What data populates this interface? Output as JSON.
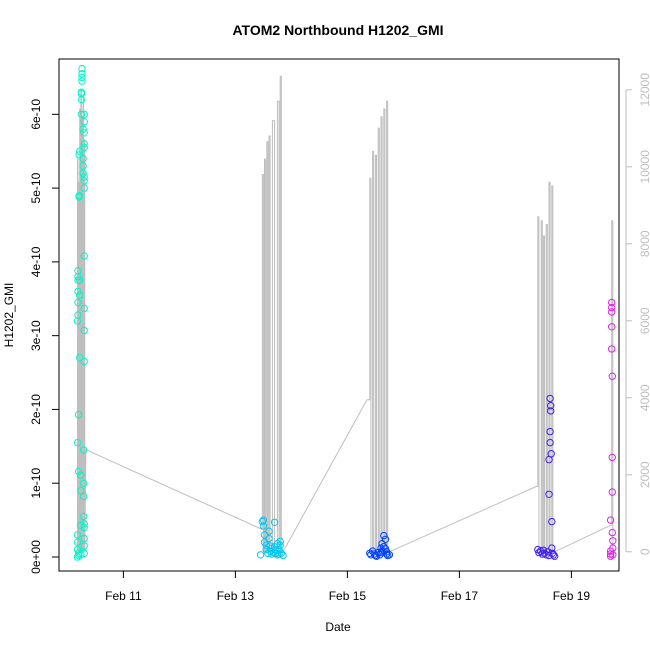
{
  "chart_data": {
    "type": "scatter",
    "title": "ATOM2 Northbound H1202_GMI",
    "xlabel": "Date",
    "ylabel": "H1202_GMI",
    "x_range_days": [
      9.85,
      19.85
    ],
    "x_ticks": [
      {
        "day": 11,
        "label": "Feb 11"
      },
      {
        "day": 13,
        "label": "Feb 13"
      },
      {
        "day": 15,
        "label": "Feb 15"
      },
      {
        "day": 17,
        "label": "Feb 17"
      },
      {
        "day": 19,
        "label": "Feb 19"
      }
    ],
    "ylim": [
      -1.9e-11,
      6.75e-10
    ],
    "y_ticks": [
      {
        "value": 0,
        "label": "0e+00"
      },
      {
        "value": 1e-10,
        "label": "1e-10"
      },
      {
        "value": 2e-10,
        "label": "2e-10"
      },
      {
        "value": 3e-10,
        "label": "3e-10"
      },
      {
        "value": 4e-10,
        "label": "4e-10"
      },
      {
        "value": 5e-10,
        "label": "5e-10"
      },
      {
        "value": 6e-10,
        "label": "6e-10"
      }
    ],
    "y2lim": [
      -500,
      12800
    ],
    "y2_ticks": [
      {
        "value": 0,
        "label": "0"
      },
      {
        "value": 2000,
        "label": "2000"
      },
      {
        "value": 4000,
        "label": "4000"
      },
      {
        "value": 6000,
        "label": "6000"
      },
      {
        "value": 8000,
        "label": "8000"
      },
      {
        "value": 10000,
        "label": "10000"
      },
      {
        "value": 12000,
        "label": "12000"
      }
    ],
    "secondary_line_color": "#bebebe",
    "series": [
      {
        "color": "#00f5c8",
        "x": [
          10.18,
          10.18,
          10.18,
          10.18,
          10.18,
          10.18,
          10.19,
          10.19,
          10.19,
          10.19,
          10.19,
          10.19,
          10.2,
          10.2,
          10.2,
          10.2,
          10.21,
          10.21,
          10.21,
          10.22,
          10.22,
          10.22,
          10.22,
          10.24,
          10.24,
          10.24,
          10.24,
          10.25,
          10.25,
          10.25,
          10.25,
          10.26,
          10.26,
          10.26,
          10.26,
          10.28,
          10.28,
          10.28,
          10.28,
          10.29,
          10.29,
          10.29,
          10.29,
          10.3,
          10.3,
          10.3,
          10.3,
          10.3,
          10.3,
          10.3,
          10.3,
          10.3,
          10.3,
          10.3,
          10.3,
          10.3,
          10.3,
          10.3,
          10.3,
          10.3
        ],
        "y": [
          0,
          1e-11,
          2e-11,
          3e-11,
          1.55e-10,
          3.2e-10,
          3.28e-10,
          3.45e-10,
          3.6e-10,
          3.75e-10,
          3.8e-10,
          3.88e-10,
          1.93e-10,
          1.16e-10,
          5e-12,
          2e-12,
          4.88e-10,
          4.9e-10,
          5.45e-10,
          5.5e-10,
          3.75e-10,
          3.55e-10,
          2.7e-10,
          1.11e-10,
          9e-11,
          4.3e-11,
          3e-12,
          6e-10,
          6.2e-10,
          6.3e-10,
          6.28e-10,
          6.45e-10,
          6.5e-10,
          6.55e-10,
          6.62e-10,
          5.2e-10,
          5.8e-10,
          5.4e-10,
          5.3e-10,
          1.45e-10,
          1e-10,
          8.2e-11,
          5.5e-11,
          4.08e-10,
          2.65e-10,
          3.07e-10,
          3.37e-10,
          5.1e-10,
          5e-10,
          5.55e-10,
          5.75e-10,
          5.9e-10,
          6e-10,
          4e-11,
          2.5e-11,
          1.5e-11,
          5e-12,
          5.6e-10,
          5.15e-10,
          4.5e-11
        ]
      },
      {
        "color": "#00c8f0",
        "x": [
          13.45,
          13.48,
          13.5,
          13.5,
          13.52,
          13.52,
          13.55,
          13.55,
          13.58,
          13.6,
          13.6,
          13.62,
          13.62,
          13.65,
          13.65,
          13.68,
          13.7,
          13.7,
          13.72,
          13.72,
          13.75,
          13.75,
          13.78,
          13.78,
          13.8,
          13.8,
          13.82,
          13.85
        ],
        "y": [
          3e-12,
          4.8e-11,
          5e-11,
          4.2e-11,
          3e-11,
          2e-11,
          1.6e-11,
          1e-11,
          5e-12,
          3.5e-11,
          2.5e-11,
          1.5e-11,
          8e-12,
          1.2e-11,
          4e-12,
          6e-12,
          4.7e-11,
          1.4e-11,
          9e-12,
          5e-12,
          3e-12,
          1.8e-11,
          1e-11,
          4e-12,
          2.1e-11,
          1.6e-11,
          5e-12,
          2e-12
        ]
      },
      {
        "color": "#0040ff",
        "x": [
          15.4,
          15.42,
          15.45,
          15.48,
          15.5,
          15.52,
          15.55,
          15.58,
          15.6,
          15.6,
          15.62,
          15.62,
          15.65,
          15.65,
          15.68,
          15.68,
          15.7,
          15.7,
          15.72,
          15.75
        ],
        "y": [
          5e-12,
          3e-12,
          8e-12,
          4e-12,
          2e-12,
          1e-12,
          6e-12,
          3e-12,
          1.2e-11,
          6e-12,
          1.8e-11,
          8e-12,
          2.9e-11,
          1.4e-11,
          2.4e-11,
          1.1e-11,
          7e-12,
          4e-12,
          2e-12,
          3e-12
        ]
      },
      {
        "color": "#4020f0",
        "x": [
          18.4,
          18.42,
          18.45,
          18.48,
          18.5,
          18.52,
          18.55,
          18.58,
          18.6,
          18.6,
          18.6,
          18.62,
          18.62,
          18.62,
          18.63,
          18.63,
          18.64,
          18.65,
          18.65,
          18.66,
          18.68,
          18.7
        ],
        "y": [
          1e-11,
          6e-12,
          8e-12,
          4e-12,
          9e-12,
          5e-12,
          3e-12,
          7e-12,
          2e-12,
          8.5e-11,
          1.32e-10,
          1.55e-10,
          1.7e-10,
          2.15e-10,
          1.98e-10,
          2.05e-10,
          1.4e-10,
          4.8e-11,
          1.2e-11,
          5e-12,
          3e-12,
          1e-12
        ]
      },
      {
        "color": "#e020f0",
        "x": [
          19.7,
          19.7,
          19.7,
          19.7,
          19.72,
          19.72,
          19.72,
          19.72,
          19.72,
          19.73,
          19.73,
          19.73,
          19.73,
          19.74,
          19.74,
          19.74
        ],
        "y": [
          1e-12,
          4e-12,
          8e-12,
          5e-11,
          3.45e-10,
          3.38e-10,
          3.32e-10,
          3.12e-10,
          2.82e-10,
          2.45e-10,
          1.35e-10,
          8.8e-11,
          3.3e-11,
          2.2e-11,
          1.2e-11,
          3e-12
        ]
      }
    ],
    "line_path": [
      [
        10.18,
        0
      ],
      [
        10.18,
        10200
      ],
      [
        10.19,
        10200
      ],
      [
        10.19,
        0
      ],
      [
        10.2,
        0
      ],
      [
        10.2,
        9600
      ],
      [
        10.21,
        9600
      ],
      [
        10.21,
        0
      ],
      [
        10.22,
        0
      ],
      [
        10.22,
        11500
      ],
      [
        10.23,
        11500
      ],
      [
        10.23,
        0
      ],
      [
        10.24,
        0
      ],
      [
        10.24,
        12000
      ],
      [
        10.25,
        12000
      ],
      [
        10.25,
        0
      ],
      [
        10.26,
        0
      ],
      [
        10.26,
        11300
      ],
      [
        10.27,
        11300
      ],
      [
        10.27,
        0
      ],
      [
        10.28,
        0
      ],
      [
        10.28,
        11800
      ],
      [
        10.29,
        11800
      ],
      [
        10.29,
        0
      ],
      [
        10.3,
        0
      ],
      [
        10.3,
        10700
      ],
      [
        10.31,
        10700
      ],
      [
        10.31,
        0
      ],
      [
        10.33,
        2650
      ],
      [
        13.45,
        600
      ],
      [
        13.48,
        600
      ],
      [
        13.48,
        9800
      ],
      [
        13.5,
        9800
      ],
      [
        13.5,
        0
      ],
      [
        13.52,
        0
      ],
      [
        13.52,
        10200
      ],
      [
        13.54,
        10200
      ],
      [
        13.54,
        0
      ],
      [
        13.56,
        0
      ],
      [
        13.56,
        10650
      ],
      [
        13.58,
        10650
      ],
      [
        13.58,
        0
      ],
      [
        13.6,
        0
      ],
      [
        13.6,
        10800
      ],
      [
        13.62,
        10800
      ],
      [
        13.62,
        0
      ],
      [
        13.66,
        0
      ],
      [
        13.66,
        11200
      ],
      [
        13.7,
        11200
      ],
      [
        13.7,
        0
      ],
      [
        13.75,
        0
      ],
      [
        13.75,
        11700
      ],
      [
        13.78,
        11700
      ],
      [
        13.78,
        0
      ],
      [
        13.8,
        0
      ],
      [
        13.8,
        12350
      ],
      [
        13.82,
        12350
      ],
      [
        13.82,
        0
      ],
      [
        13.85,
        0
      ],
      [
        15.35,
        3950
      ],
      [
        15.4,
        3950
      ],
      [
        15.4,
        9700
      ],
      [
        15.42,
        9700
      ],
      [
        15.42,
        0
      ],
      [
        15.45,
        0
      ],
      [
        15.45,
        10400
      ],
      [
        15.47,
        10400
      ],
      [
        15.47,
        0
      ],
      [
        15.5,
        0
      ],
      [
        15.5,
        10300
      ],
      [
        15.52,
        10300
      ],
      [
        15.52,
        0
      ],
      [
        15.55,
        0
      ],
      [
        15.55,
        11000
      ],
      [
        15.57,
        11000
      ],
      [
        15.57,
        0
      ],
      [
        15.6,
        0
      ],
      [
        15.6,
        11300
      ],
      [
        15.62,
        11300
      ],
      [
        15.62,
        0
      ],
      [
        15.65,
        0
      ],
      [
        15.65,
        11500
      ],
      [
        15.67,
        11500
      ],
      [
        15.67,
        0
      ],
      [
        15.7,
        0
      ],
      [
        15.7,
        11700
      ],
      [
        15.72,
        11700
      ],
      [
        15.72,
        0
      ],
      [
        15.75,
        0
      ],
      [
        18.38,
        1700
      ],
      [
        18.4,
        1700
      ],
      [
        18.4,
        8700
      ],
      [
        18.42,
        8700
      ],
      [
        18.42,
        0
      ],
      [
        18.46,
        0
      ],
      [
        18.46,
        8600
      ],
      [
        18.48,
        8600
      ],
      [
        18.48,
        0
      ],
      [
        18.5,
        0
      ],
      [
        18.5,
        8200
      ],
      [
        18.52,
        8200
      ],
      [
        18.52,
        0
      ],
      [
        18.55,
        0
      ],
      [
        18.55,
        8500
      ],
      [
        18.57,
        8500
      ],
      [
        18.57,
        0
      ],
      [
        18.6,
        0
      ],
      [
        18.6,
        9600
      ],
      [
        18.62,
        9600
      ],
      [
        18.62,
        0
      ],
      [
        18.65,
        0
      ],
      [
        18.65,
        9500
      ],
      [
        18.67,
        9500
      ],
      [
        18.67,
        0
      ],
      [
        18.7,
        0
      ],
      [
        19.72,
        700
      ],
      [
        19.72,
        8600
      ],
      [
        19.74,
        8600
      ],
      [
        19.74,
        0
      ]
    ]
  }
}
